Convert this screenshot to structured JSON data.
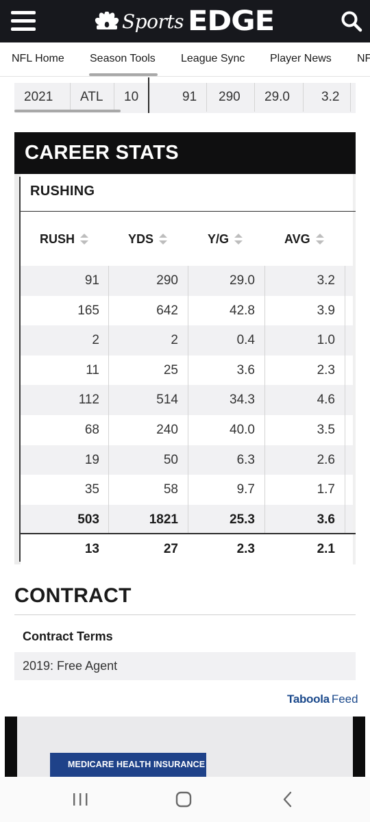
{
  "header": {
    "brand_sports": "Sports",
    "brand_edge": "EDGE",
    "colors": {
      "bar": "#17181d",
      "text": "#ffffff"
    }
  },
  "nav": {
    "tabs": [
      "NFL Home",
      "Season Tools",
      "League Sync",
      "Player News",
      "NF"
    ]
  },
  "previous_row": {
    "season": "2021",
    "team": "ATL",
    "gp": "10",
    "rush": "91",
    "yds": "290",
    "ypg": "29.0",
    "avg": "3.2"
  },
  "career": {
    "title": "CAREER STATS",
    "section": "RUSHING",
    "columns": [
      "RUSH",
      "YDS",
      "Y/G",
      "AVG"
    ],
    "rows": [
      [
        "91",
        "290",
        "29.0",
        "3.2"
      ],
      [
        "165",
        "642",
        "42.8",
        "3.9"
      ],
      [
        "2",
        "2",
        "0.4",
        "1.0"
      ],
      [
        "11",
        "25",
        "3.6",
        "2.3"
      ],
      [
        "112",
        "514",
        "34.3",
        "4.6"
      ],
      [
        "68",
        "240",
        "40.0",
        "3.5"
      ],
      [
        "19",
        "50",
        "6.3",
        "2.6"
      ],
      [
        "35",
        "58",
        "9.7",
        "1.7"
      ]
    ],
    "total": [
      "503",
      "1821",
      "25.3",
      "3.6"
    ],
    "average": [
      "13",
      "27",
      "2.3",
      "2.1"
    ]
  },
  "contract": {
    "title": "CONTRACT",
    "terms_label": "Contract Terms",
    "terms_value": "2019: Free Agent"
  },
  "taboola": {
    "brand": "Taboola",
    "feed": "Feed",
    "color": "#1c4a8c"
  },
  "ad": {
    "text": "MEDICARE HEALTH INSURANCE"
  },
  "system_nav": {
    "icons": [
      "recents-icon",
      "home-icon",
      "back-icon"
    ]
  }
}
